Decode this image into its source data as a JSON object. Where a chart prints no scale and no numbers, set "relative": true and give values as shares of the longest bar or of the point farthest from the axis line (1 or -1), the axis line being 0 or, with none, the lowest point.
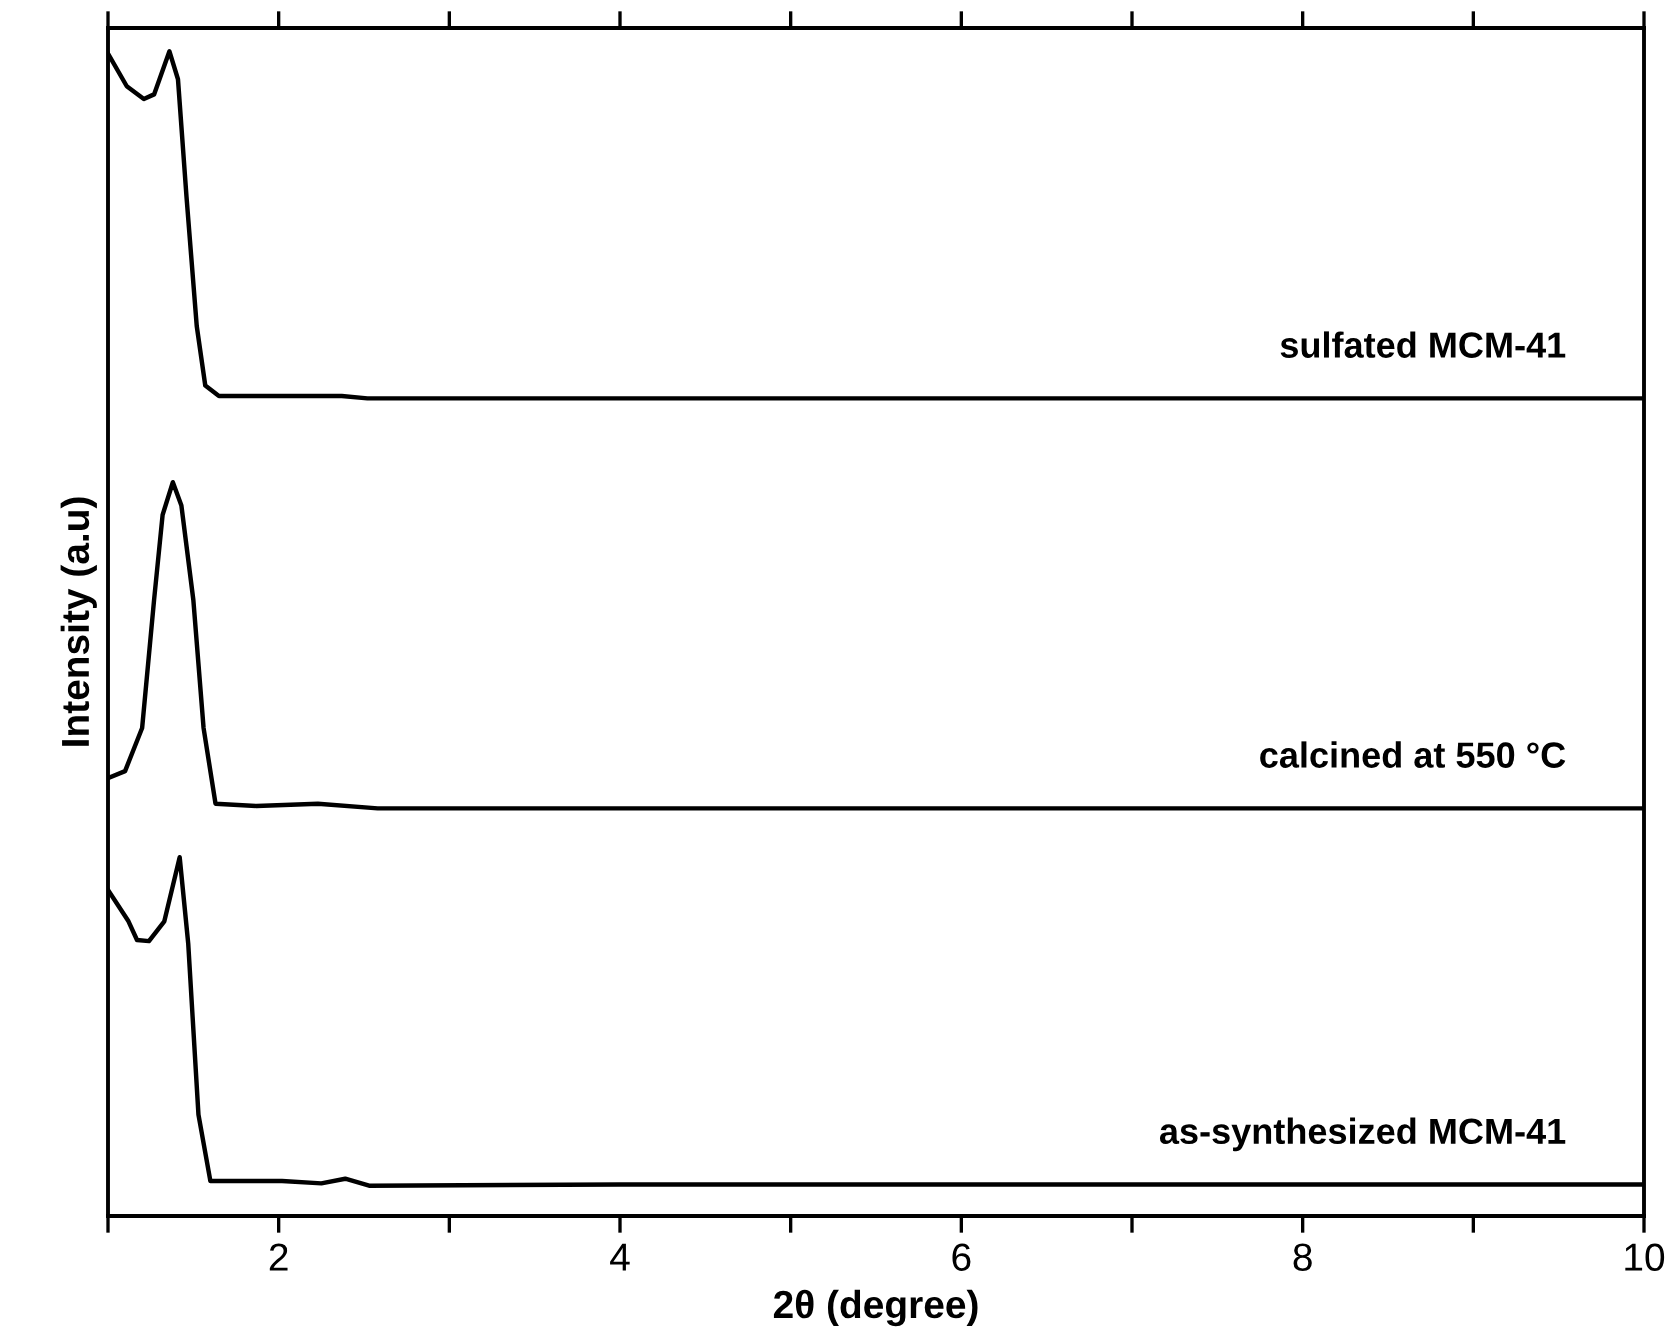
{
  "chart_data": {
    "type": "line",
    "relative": true,
    "xlabel": "2θ (degree)",
    "ylabel": "Intensity (a.u)",
    "xlim": [
      1,
      10
    ],
    "xticks": [
      {
        "value": 1,
        "label": null
      },
      2,
      {
        "value": 3,
        "label": null
      },
      4,
      {
        "value": 5,
        "label": null
      },
      6,
      {
        "value": 7,
        "label": null
      },
      8,
      {
        "value": 9,
        "label": null
      },
      10
    ],
    "grid": false,
    "legend": false,
    "marker": "none",
    "line_style": "solid",
    "series": [
      {
        "name": "sulfated MCM-41",
        "color": "#000000",
        "x": [
          1.0,
          1.11,
          1.21,
          1.27,
          1.36,
          1.41,
          1.46,
          1.52,
          1.57,
          1.65,
          2.37,
          2.52,
          10
        ],
        "values": [
          0.998,
          0.97,
          0.959,
          0.963,
          1.0,
          0.976,
          0.875,
          0.764,
          0.713,
          0.704,
          0.704,
          0.702,
          0.702
        ]
      },
      {
        "name": "calcined at 550 °C",
        "color": "#000000",
        "x": [
          1.0,
          1.1,
          1.2,
          1.27,
          1.32,
          1.38,
          1.43,
          1.5,
          1.56,
          1.63,
          1.87,
          2.23,
          2.58,
          10
        ],
        "values": [
          0.376,
          0.382,
          0.419,
          0.529,
          0.602,
          0.63,
          0.61,
          0.529,
          0.419,
          0.354,
          0.352,
          0.354,
          0.35,
          0.35
        ]
      },
      {
        "name": "as-synthesized MCM-41",
        "color": "#000000",
        "x": [
          1.0,
          1.12,
          1.17,
          1.24,
          1.33,
          1.42,
          1.47,
          1.53,
          1.6,
          2.02,
          2.25,
          2.39,
          2.53,
          4,
          10
        ],
        "values": [
          0.28,
          0.253,
          0.237,
          0.236,
          0.253,
          0.308,
          0.234,
          0.087,
          0.03,
          0.03,
          0.028,
          0.032,
          0.026,
          0.027,
          0.027
        ]
      }
    ]
  }
}
